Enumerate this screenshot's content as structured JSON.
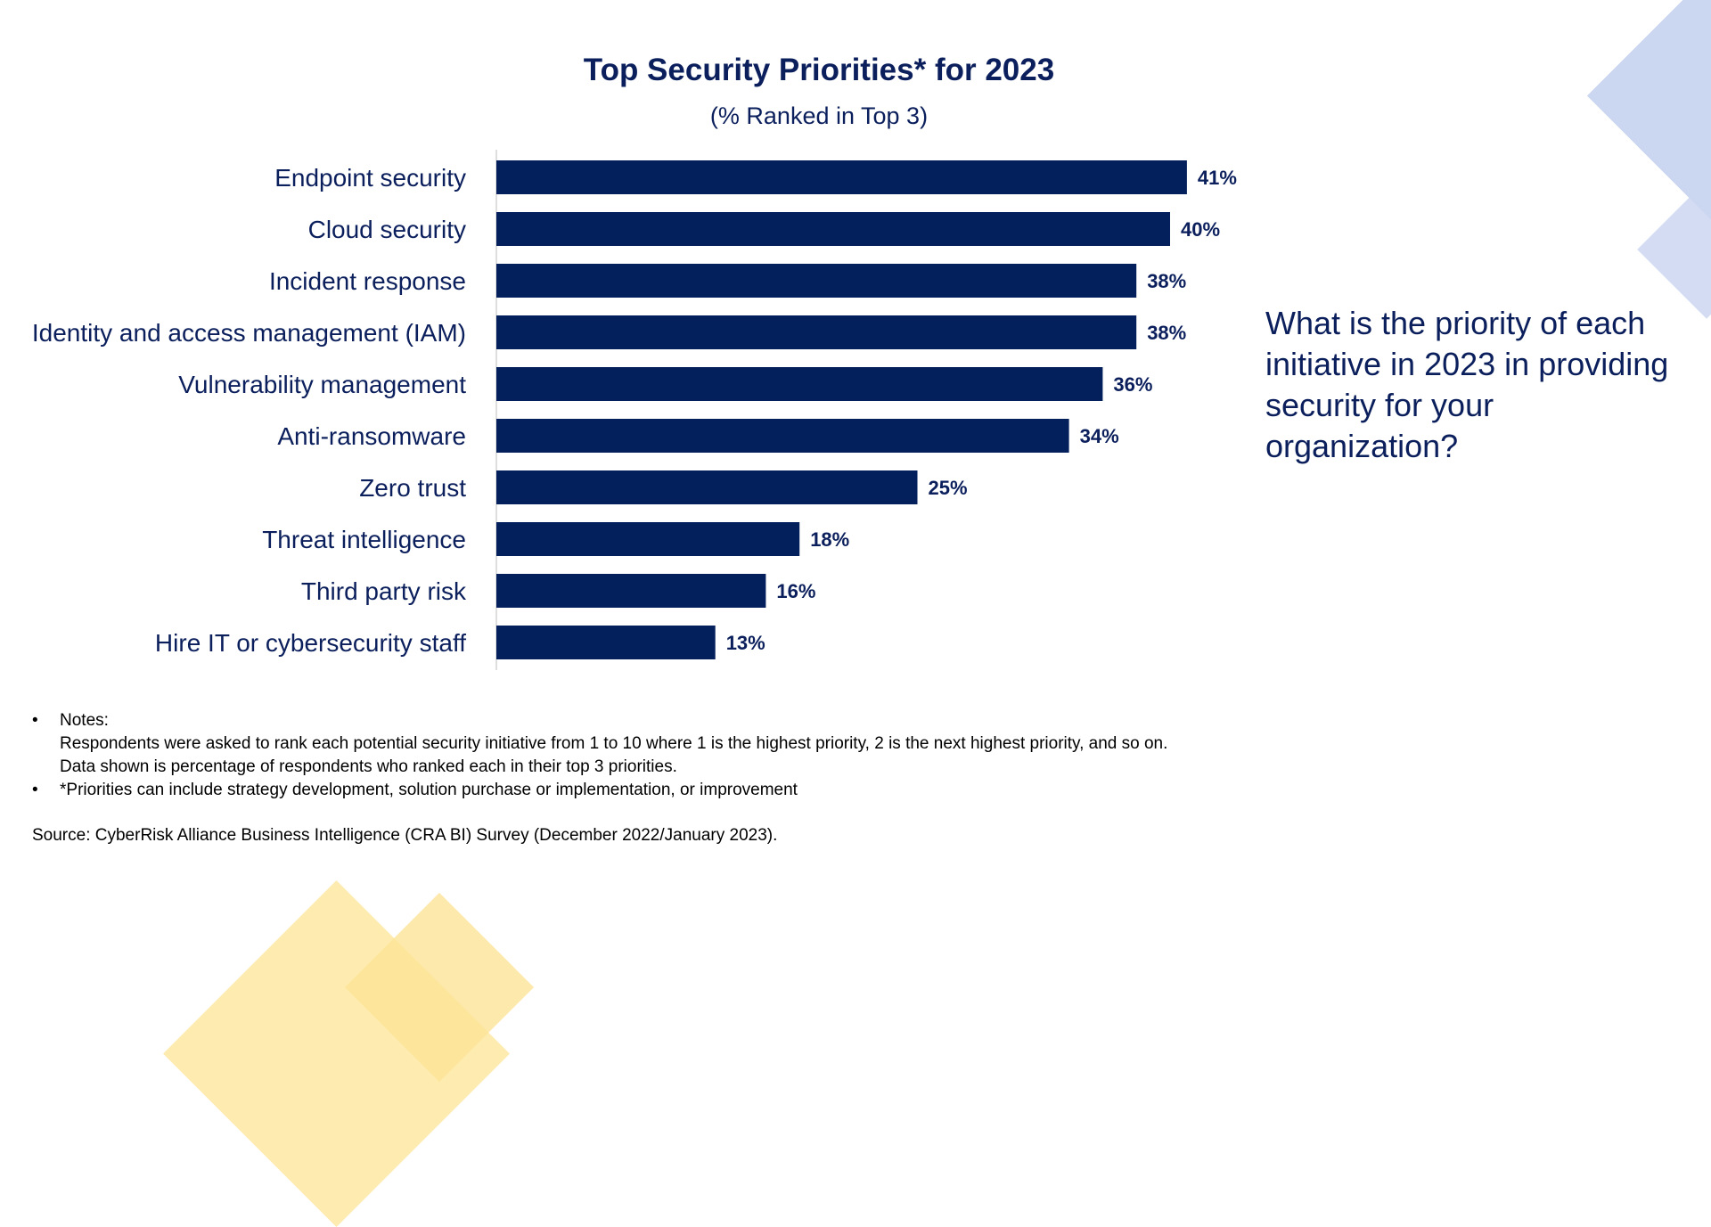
{
  "chart_data": {
    "type": "bar",
    "orientation": "horizontal",
    "title": "Top Security Priorities* for 2023",
    "subtitle": "(% Ranked in Top 3)",
    "categories": [
      "Endpoint security",
      "Cloud security",
      "Incident response",
      "Identity and access management (IAM)",
      "Vulnerability management",
      "Anti-ransomware",
      "Zero trust",
      "Threat intelligence",
      "Third party risk",
      "Hire IT or cybersecurity staff"
    ],
    "values": [
      41,
      40,
      38,
      38,
      36,
      34,
      25,
      18,
      16,
      13
    ],
    "value_labels": [
      "41%",
      "40%",
      "38%",
      "38%",
      "36%",
      "34%",
      "25%",
      "18%",
      "16%",
      "13%"
    ],
    "unit": "%",
    "grid": false,
    "legend": "none",
    "bar_color": "#03205c"
  },
  "question": "What is the priority of each initiative in 2023 in providing security for your organization?",
  "notes": {
    "bullet": "•",
    "items": [
      {
        "lines": [
          "Notes:",
          "Respondents were asked to rank each potential security initiative from 1 to 10 where 1 is the highest priority, 2 is the next highest priority, and so on.",
          "Data shown is percentage of respondents who ranked each in their top 3 priorities."
        ]
      },
      {
        "lines": [
          "*Priorities can include strategy development, solution purchase or implementation, or improvement"
        ]
      }
    ]
  },
  "source": "Source: CyberRisk Alliance Business Intelligence (CRA BI) Survey (December 2022/January 2023).",
  "colors": {
    "text": "#0b1f5c",
    "bar": "#03205c",
    "decor_blue": "#cbd6f0",
    "decor_yellow": "#fde9a6"
  }
}
